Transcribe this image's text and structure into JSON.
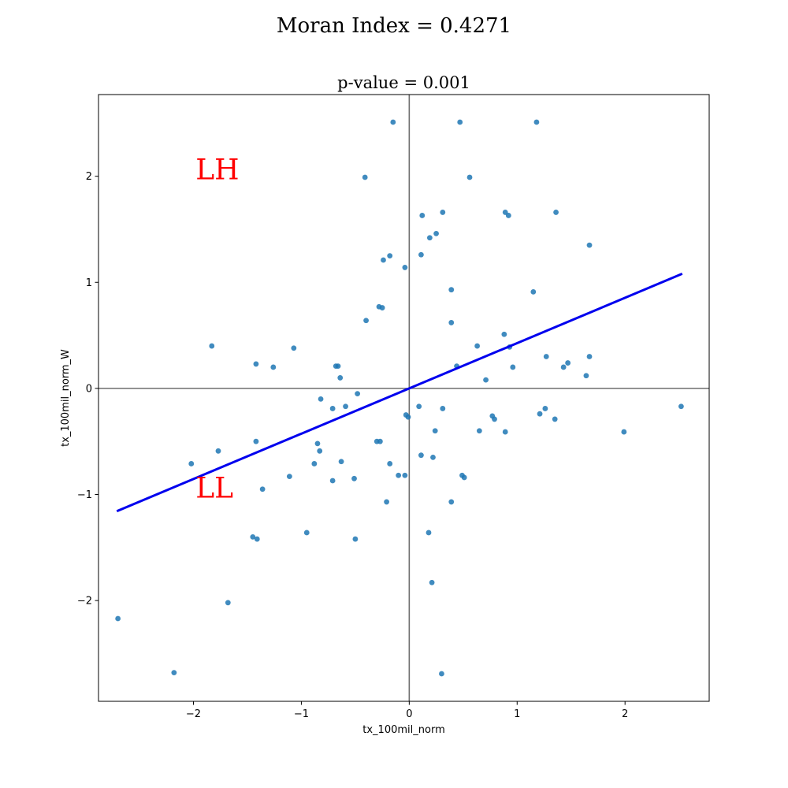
{
  "chart_data": {
    "type": "scatter",
    "title": "Moran Index = 0.4271",
    "subtitle": "p-value = 0.001",
    "xlabel": "tx_100mil_norm",
    "ylabel": "tx_100mil_norm_W",
    "xlim": [
      -2.88,
      2.78
    ],
    "ylim": [
      -2.95,
      2.77
    ],
    "xticks": [
      -2,
      -1,
      0,
      1,
      2
    ],
    "yticks": [
      -2,
      -1,
      0,
      1,
      2
    ],
    "xtick_labels": [
      "−2",
      "−1",
      "0",
      "1",
      "2"
    ],
    "ytick_labels": [
      "−2",
      "−1",
      "0",
      "1",
      "2"
    ],
    "grid": false,
    "point_color": "#1f77b4",
    "line_color": "#0000ee",
    "regression_line": {
      "slope": 0.4271,
      "x_start": -2.7,
      "x_end": 2.52
    },
    "quadrant_labels": [
      {
        "text": "LH",
        "x": -1.98,
        "y": 1.97,
        "color": "#ff0000"
      },
      {
        "text": "LL",
        "x": -1.98,
        "y": -1.03,
        "color": "#ff0000"
      }
    ],
    "points": [
      [
        -0.15,
        2.51
      ],
      [
        0.47,
        2.51
      ],
      [
        1.18,
        2.51
      ],
      [
        -0.41,
        1.99
      ],
      [
        0.56,
        1.99
      ],
      [
        0.12,
        1.63
      ],
      [
        0.31,
        1.66
      ],
      [
        0.89,
        1.66
      ],
      [
        0.92,
        1.63
      ],
      [
        1.36,
        1.66
      ],
      [
        0.19,
        1.42
      ],
      [
        0.25,
        1.46
      ],
      [
        1.67,
        1.35
      ],
      [
        -0.24,
        1.21
      ],
      [
        -0.18,
        1.25
      ],
      [
        0.11,
        1.26
      ],
      [
        -0.04,
        1.14
      ],
      [
        0.39,
        0.93
      ],
      [
        1.15,
        0.91
      ],
      [
        -0.28,
        0.77
      ],
      [
        -0.25,
        0.76
      ],
      [
        -0.4,
        0.64
      ],
      [
        0.39,
        0.62
      ],
      [
        0.88,
        0.51
      ],
      [
        -1.83,
        0.4
      ],
      [
        -1.07,
        0.38
      ],
      [
        0.63,
        0.4
      ],
      [
        0.93,
        0.39
      ],
      [
        1.27,
        0.3
      ],
      [
        1.67,
        0.3
      ],
      [
        -1.42,
        0.23
      ],
      [
        -1.26,
        0.2
      ],
      [
        -0.68,
        0.21
      ],
      [
        -0.66,
        0.21
      ],
      [
        0.44,
        0.21
      ],
      [
        0.96,
        0.2
      ],
      [
        1.43,
        0.2
      ],
      [
        1.47,
        0.24
      ],
      [
        1.64,
        0.12
      ],
      [
        -0.64,
        0.1
      ],
      [
        0.71,
        0.08
      ],
      [
        -0.48,
        -0.05
      ],
      [
        -0.82,
        -0.1
      ],
      [
        -0.71,
        -0.19
      ],
      [
        -0.59,
        -0.17
      ],
      [
        0.09,
        -0.17
      ],
      [
        0.31,
        -0.19
      ],
      [
        1.26,
        -0.19
      ],
      [
        2.52,
        -0.17
      ],
      [
        -0.03,
        -0.25
      ],
      [
        -0.01,
        -0.27
      ],
      [
        0.77,
        -0.26
      ],
      [
        0.79,
        -0.29
      ],
      [
        1.21,
        -0.24
      ],
      [
        1.35,
        -0.29
      ],
      [
        0.24,
        -0.4
      ],
      [
        0.65,
        -0.4
      ],
      [
        0.89,
        -0.41
      ],
      [
        1.99,
        -0.41
      ],
      [
        -1.42,
        -0.5
      ],
      [
        -0.3,
        -0.5
      ],
      [
        -0.27,
        -0.5
      ],
      [
        -0.85,
        -0.52
      ],
      [
        -0.83,
        -0.59
      ],
      [
        -1.77,
        -0.59
      ],
      [
        0.11,
        -0.63
      ],
      [
        0.22,
        -0.65
      ],
      [
        -0.63,
        -0.69
      ],
      [
        -2.02,
        -0.71
      ],
      [
        -0.88,
        -0.71
      ],
      [
        -0.18,
        -0.71
      ],
      [
        -1.11,
        -0.83
      ],
      [
        -0.1,
        -0.82
      ],
      [
        -0.04,
        -0.82
      ],
      [
        0.49,
        -0.82
      ],
      [
        0.51,
        -0.84
      ],
      [
        -0.71,
        -0.87
      ],
      [
        -0.51,
        -0.85
      ],
      [
        -1.36,
        -0.95
      ],
      [
        -0.21,
        -1.07
      ],
      [
        0.39,
        -1.07
      ],
      [
        -0.95,
        -1.36
      ],
      [
        0.18,
        -1.36
      ],
      [
        -1.45,
        -1.4
      ],
      [
        -1.41,
        -1.42
      ],
      [
        -0.5,
        -1.42
      ],
      [
        0.21,
        -1.83
      ],
      [
        -1.68,
        -2.02
      ],
      [
        -2.7,
        -2.17
      ],
      [
        -2.18,
        -2.68
      ],
      [
        0.3,
        -2.69
      ]
    ]
  }
}
